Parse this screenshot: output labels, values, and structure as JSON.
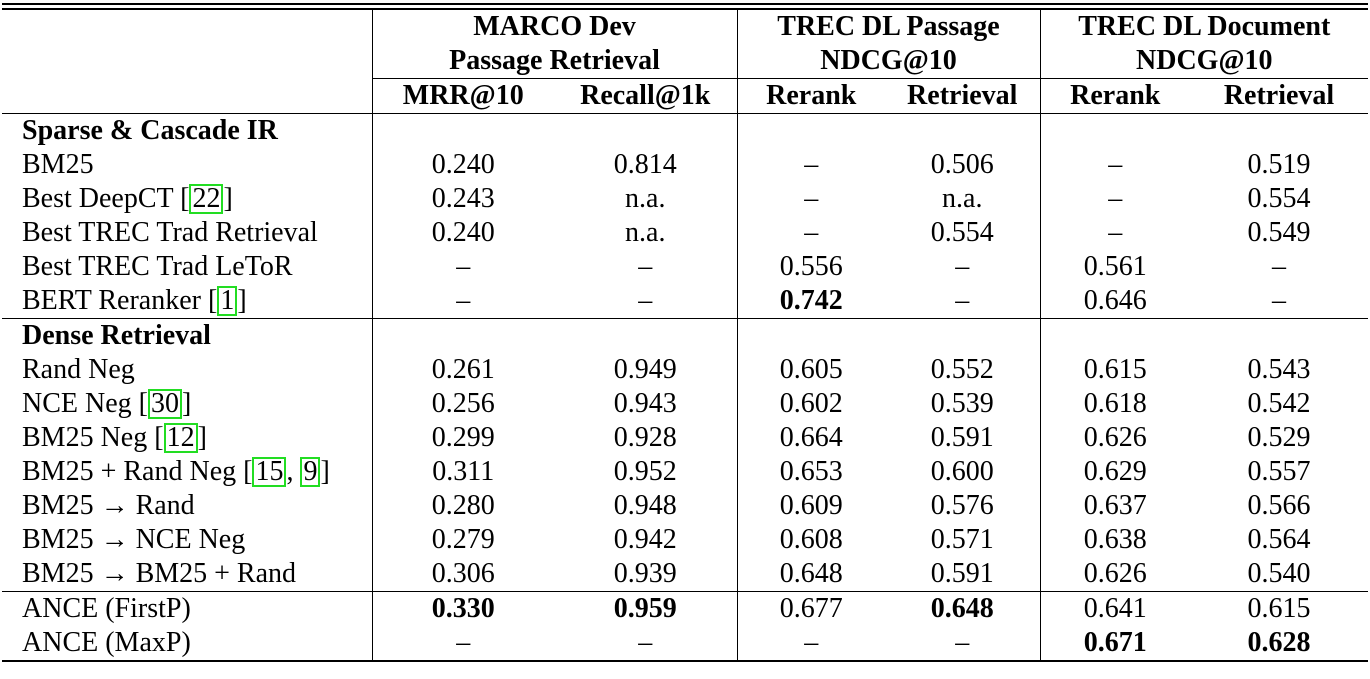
{
  "groups": [
    {
      "line1": "MARCO Dev",
      "line2": "Passage Retrieval"
    },
    {
      "line1": "TREC DL Passage",
      "line2": "NDCG@10"
    },
    {
      "line1": "TREC DL Document",
      "line2": "NDCG@10"
    }
  ],
  "subheaders": [
    "MRR@10",
    "Recall@1k",
    "Rerank",
    "Retrieval",
    "Rerank",
    "Retrieval"
  ],
  "sections": {
    "sparse": "Sparse & Cascade IR",
    "dense": "Dense Retrieval"
  },
  "rows": {
    "bm25": {
      "label": "BM25",
      "cite": [],
      "values": [
        "0.240",
        "0.814",
        "–",
        "0.506",
        "–",
        "0.519"
      ]
    },
    "deepct": {
      "label": "Best DeepCT",
      "cite": [
        "22"
      ],
      "values": [
        "0.243",
        "n.a.",
        "–",
        "n.a.",
        "–",
        "0.554"
      ]
    },
    "trad_ret": {
      "label": "Best TREC Trad Retrieval",
      "cite": [],
      "values": [
        "0.240",
        "n.a.",
        "–",
        "0.554",
        "–",
        "0.549"
      ]
    },
    "trad_letor": {
      "label": "Best TREC Trad LeToR",
      "cite": [],
      "values": [
        "–",
        "–",
        "0.556",
        "–",
        "0.561",
        "–"
      ]
    },
    "bert": {
      "label": "BERT Reranker",
      "cite": [
        "1"
      ],
      "values": [
        "–",
        "–",
        "0.742",
        "–",
        "0.646",
        "–"
      ]
    },
    "rand_neg": {
      "label": "Rand Neg",
      "cite": [],
      "values": [
        "0.261",
        "0.949",
        "0.605",
        "0.552",
        "0.615",
        "0.543"
      ]
    },
    "nce_neg": {
      "label": "NCE Neg",
      "cite": [
        "30"
      ],
      "values": [
        "0.256",
        "0.943",
        "0.602",
        "0.539",
        "0.618",
        "0.542"
      ]
    },
    "bm25_neg": {
      "label": "BM25 Neg",
      "cite": [
        "12"
      ],
      "values": [
        "0.299",
        "0.928",
        "0.664",
        "0.591",
        "0.626",
        "0.529"
      ]
    },
    "bm25_rand": {
      "label": "BM25 + Rand Neg",
      "cite": [
        "15",
        "9"
      ],
      "values": [
        "0.311",
        "0.952",
        "0.653",
        "0.600",
        "0.629",
        "0.557"
      ]
    },
    "bm25_to_rand": {
      "label": "BM25 → Rand",
      "cite": [],
      "values": [
        "0.280",
        "0.948",
        "0.609",
        "0.576",
        "0.637",
        "0.566"
      ]
    },
    "bm25_to_nce": {
      "label": "BM25 → NCE Neg",
      "cite": [],
      "values": [
        "0.279",
        "0.942",
        "0.608",
        "0.571",
        "0.638",
        "0.564"
      ]
    },
    "bm25_to_bm25rand": {
      "label": "BM25 → BM25 + Rand",
      "cite": [],
      "values": [
        "0.306",
        "0.939",
        "0.648",
        "0.591",
        "0.626",
        "0.540"
      ]
    },
    "ance_firstp": {
      "label": "ANCE (FirstP)",
      "cite": [],
      "values": [
        "0.330",
        "0.959",
        "0.677",
        "0.648",
        "0.641",
        "0.615"
      ]
    },
    "ance_maxp": {
      "label": "ANCE (MaxP)",
      "cite": [],
      "values": [
        "–",
        "–",
        "–",
        "–",
        "0.671",
        "0.628"
      ]
    }
  }
}
